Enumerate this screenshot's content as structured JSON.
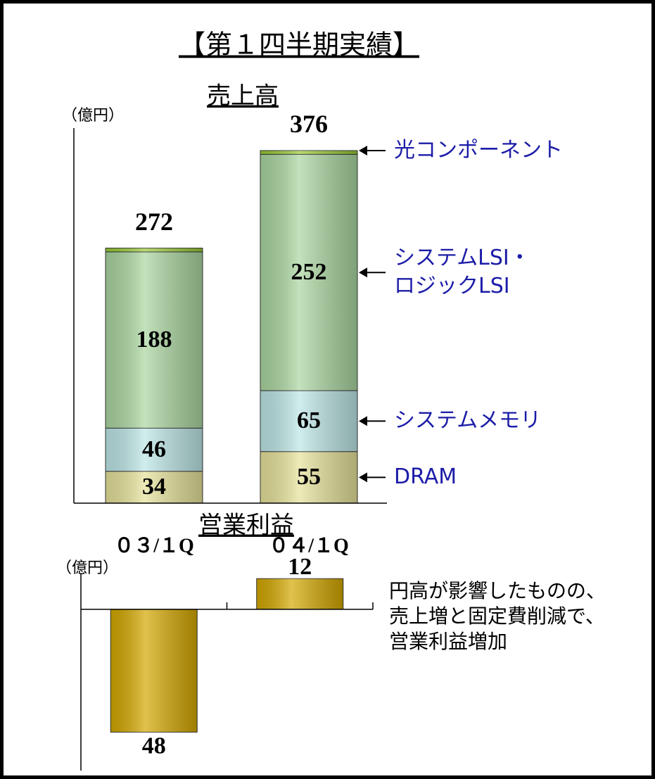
{
  "title": "【第１四半期実績】",
  "chart_data": [
    {
      "type": "bar",
      "stacked": true,
      "title": "売上高",
      "y_label": "（億円）",
      "categories": [
        "０３/１Q",
        "０４/１Q"
      ],
      "series": [
        {
          "name": "DRAM",
          "color": "#e6e29a",
          "values": [
            34,
            55
          ]
        },
        {
          "name": "システムメモリ",
          "color": "#bde6e6",
          "values": [
            46,
            65
          ]
        },
        {
          "name": "システムLSI・\nロジックLSI",
          "color": "#aad6a0",
          "values": [
            188,
            252
          ]
        },
        {
          "name": "光コンポーネント",
          "color": "#99cc33",
          "values": [
            4,
            4
          ]
        }
      ],
      "totals": [
        272,
        376
      ],
      "ylim": [
        0,
        400
      ]
    },
    {
      "type": "bar",
      "title": "営業利益",
      "y_label": "（億円）",
      "values": [
        -48,
        12
      ],
      "value_labels": [
        "48",
        "12"
      ],
      "color": "#d4a800",
      "ylim": [
        -63,
        14
      ],
      "annotation": "円高が影響したものの、\n売上増と固定費削減で、\n営業利益増加"
    }
  ]
}
